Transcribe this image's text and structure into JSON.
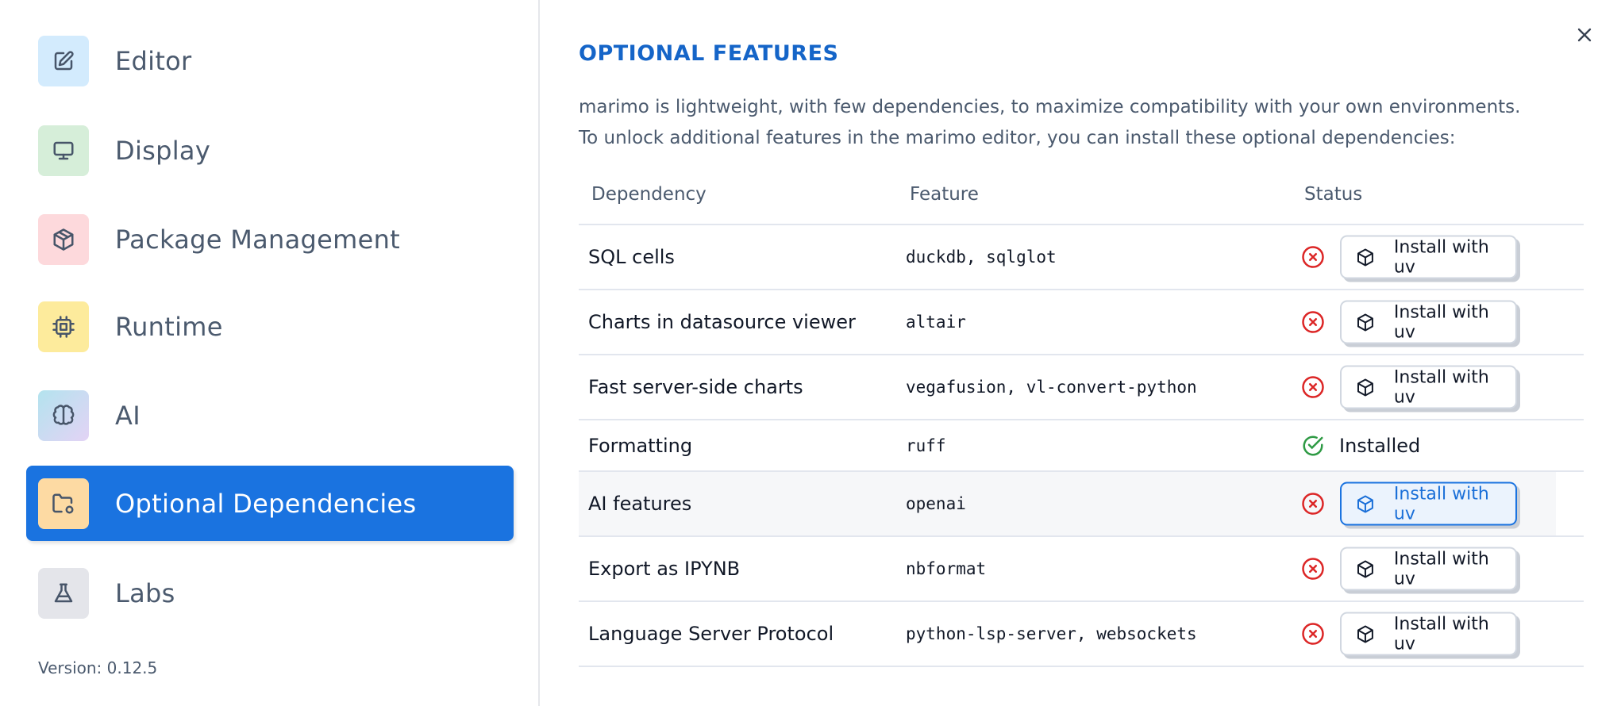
{
  "sidebar": {
    "items": [
      {
        "label": "Editor",
        "icon": "edit-icon",
        "color": "#d3ebfd"
      },
      {
        "label": "Display",
        "icon": "monitor-icon",
        "color": "#d6eed9"
      },
      {
        "label": "Package Management",
        "icon": "package-icon",
        "color": "#fdd9dc"
      },
      {
        "label": "Runtime",
        "icon": "cpu-icon",
        "color": "#fdeb9c"
      },
      {
        "label": "AI",
        "icon": "brain-icon",
        "color": "linear-gradient(135deg,#b3e3ee,#e3d3f5)"
      },
      {
        "label": "Optional Dependencies",
        "icon": "folder-cog-icon",
        "color": "#fddaa3",
        "active": true
      },
      {
        "label": "Labs",
        "icon": "flask-icon",
        "color": "#e4e5ea"
      }
    ],
    "version": "Version: 0.12.5"
  },
  "main": {
    "title": "OPTIONAL FEATURES",
    "description": [
      "marimo is lightweight, with few dependencies, to maximize compatibility with your own environments.",
      "To unlock additional features in the marimo editor, you can install these optional dependencies:"
    ],
    "table": {
      "headers": [
        "Dependency",
        "Feature",
        "Status"
      ],
      "rows": [
        {
          "dependency": "SQL cells",
          "feature": "duckdb, sqlglot",
          "status": "missing",
          "action": "Install with uv"
        },
        {
          "dependency": "Charts in datasource viewer",
          "feature": "altair",
          "status": "missing",
          "action": "Install with uv"
        },
        {
          "dependency": "Fast server-side charts",
          "feature": "vegafusion, vl-convert-python",
          "status": "missing",
          "action": "Install with uv"
        },
        {
          "dependency": "Formatting",
          "feature": "ruff",
          "status": "installed",
          "action": "Installed"
        },
        {
          "dependency": "AI features",
          "feature": "openai",
          "status": "missing",
          "action": "Install with uv",
          "hover": true
        },
        {
          "dependency": "Export as IPYNB",
          "feature": "nbformat",
          "status": "missing",
          "action": "Install with uv"
        },
        {
          "dependency": "Language Server Protocol",
          "feature": "python-lsp-server, websockets",
          "status": "missing",
          "action": "Install with uv"
        }
      ]
    }
  },
  "colors": {
    "accent": "#1a73e0",
    "title": "#1565c8",
    "error": "#dc2626",
    "success": "#2e9a44"
  }
}
